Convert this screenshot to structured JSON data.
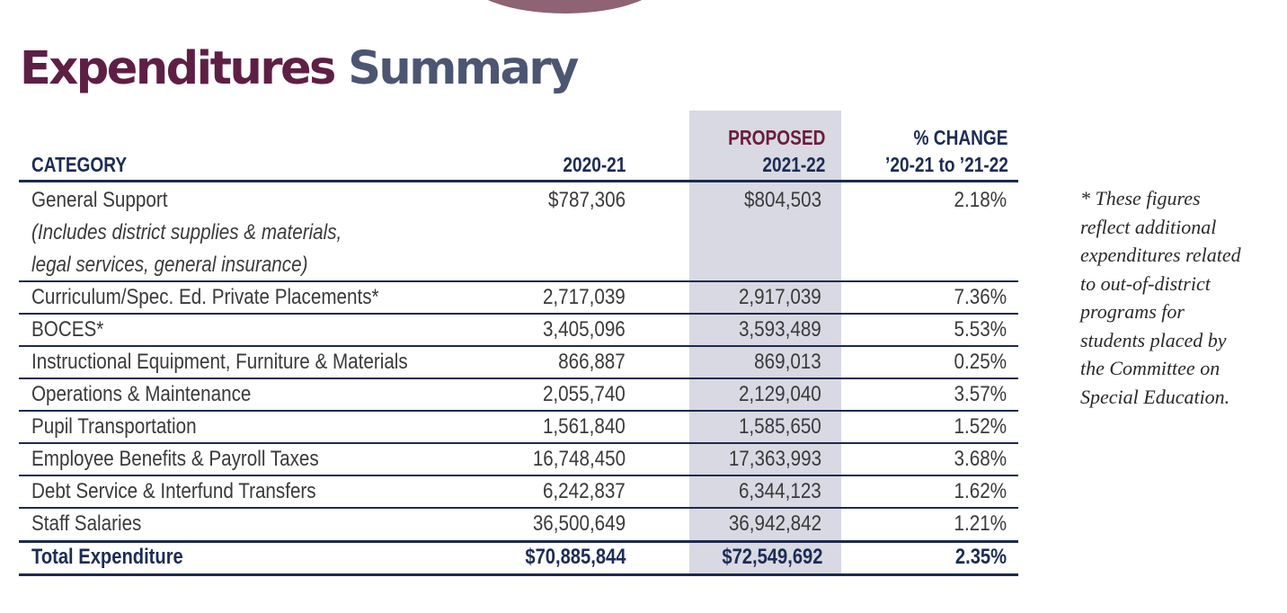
{
  "title": {
    "word1": "Expenditures",
    "word2": "Summary"
  },
  "header": {
    "category": "CATEGORY",
    "year1": "2020-21",
    "proposed_label": "PROPOSED",
    "year2": "2021-22",
    "change_line1": "% CHANGE",
    "change_line2": "’20-21 to ’21-22"
  },
  "rows": [
    {
      "category": "General Support",
      "note_lines": [
        "(Includes district supplies & materials,",
        "legal services, general insurance)"
      ],
      "y2020_21": "$787,306",
      "y2021_22": "$804,503",
      "change": "2.18%"
    },
    {
      "category": "Curriculum/Spec. Ed. Private Placements*",
      "y2020_21": "2,717,039",
      "y2021_22": "2,917,039",
      "change": "7.36%"
    },
    {
      "category": "BOCES*",
      "y2020_21": "3,405,096",
      "y2021_22": "3,593,489",
      "change": "5.53%"
    },
    {
      "category": "Instructional Equipment, Furniture & Materials",
      "y2020_21": "866,887",
      "y2021_22": "869,013",
      "change": "0.25%"
    },
    {
      "category": "Operations & Maintenance",
      "y2020_21": "2,055,740",
      "y2021_22": "2,129,040",
      "change": "3.57%"
    },
    {
      "category": "Pupil Transportation",
      "y2020_21": "1,561,840",
      "y2021_22": "1,585,650",
      "change": "1.52%"
    },
    {
      "category": "Employee Benefits & Payroll Taxes",
      "y2020_21": "16,748,450",
      "y2021_22": "17,363,993",
      "change": "3.68%"
    },
    {
      "category": "Debt Service & Interfund Transfers",
      "y2020_21": "6,242,837",
      "y2021_22": "6,344,123",
      "change": "1.62%"
    },
    {
      "category": "Staff Salaries",
      "y2020_21": "36,500,649",
      "y2021_22": "36,942,842",
      "change": "1.21%"
    }
  ],
  "total": {
    "category": "Total Expenditure",
    "y2020_21": "$70,885,844",
    "y2021_22": "$72,549,692",
    "change": "2.35%"
  },
  "footnote_lines": [
    "* These figures",
    "reflect additional",
    "expenditures related",
    "to out-of-district",
    "programs for",
    "students placed by",
    "the Committee on",
    "Special Education."
  ],
  "colors": {
    "title_word1": "#5e1f45",
    "title_word2": "#4c5672",
    "header_text": "#1c2c55",
    "proposed_label": "#6a1d3f",
    "rule_lines": "#1d2a4e",
    "proposed_column_shade": "#d8d9e2",
    "decorative_arc": "#8e6373"
  }
}
